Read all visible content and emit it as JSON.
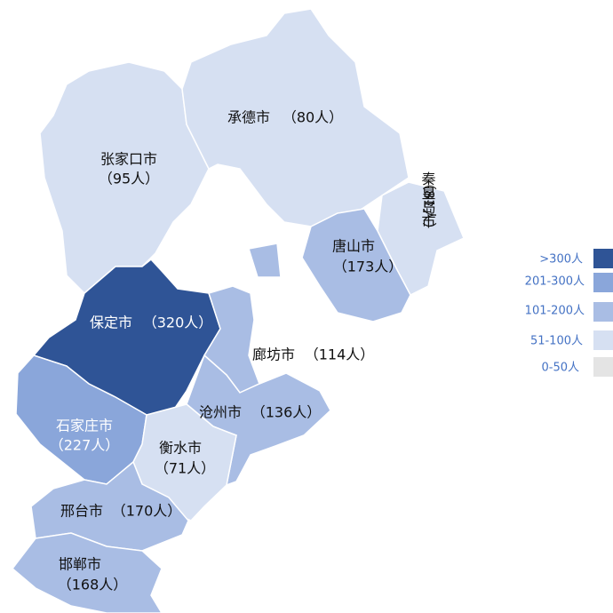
{
  "regions": [
    {
      "name": "张家口市",
      "count": "（95人）",
      "color": "#d6e0f2"
    },
    {
      "name": "承德市",
      "count": "（80人）",
      "color": "#d6e0f2"
    },
    {
      "name": "秦皇岛市",
      "count": "（81人）",
      "color": "#d6e0f2"
    },
    {
      "name": "唐山市",
      "count": "（173人）",
      "color": "#a9bde4"
    },
    {
      "name": "保定市",
      "count": "（320人）",
      "color": "#2f5496"
    },
    {
      "name": "廊坊市",
      "count": "（114人）",
      "color": "#a9bde4"
    },
    {
      "name": "沧州市",
      "count": "（136人）",
      "color": "#a9bde4"
    },
    {
      "name": "石家庄市",
      "count": "（227人）",
      "color": "#8aa6da"
    },
    {
      "name": "衡水市",
      "count": "（71人）",
      "color": "#d6e0f2"
    },
    {
      "name": "邢台市",
      "count": "（170人）",
      "color": "#a9bde4"
    },
    {
      "name": "邯郸市",
      "count": "（168人）",
      "color": "#a9bde4"
    }
  ],
  "legend": [
    {
      "label": ">300人",
      "color": "#2f5496"
    },
    {
      "label": "201-300人",
      "color": "#8aa6da"
    },
    {
      "label": "101-200人",
      "color": "#a9bde4"
    },
    {
      "label": "51-100人",
      "color": "#d6e0f2"
    },
    {
      "label": "0-50人",
      "color": "#e4e4e4"
    }
  ]
}
